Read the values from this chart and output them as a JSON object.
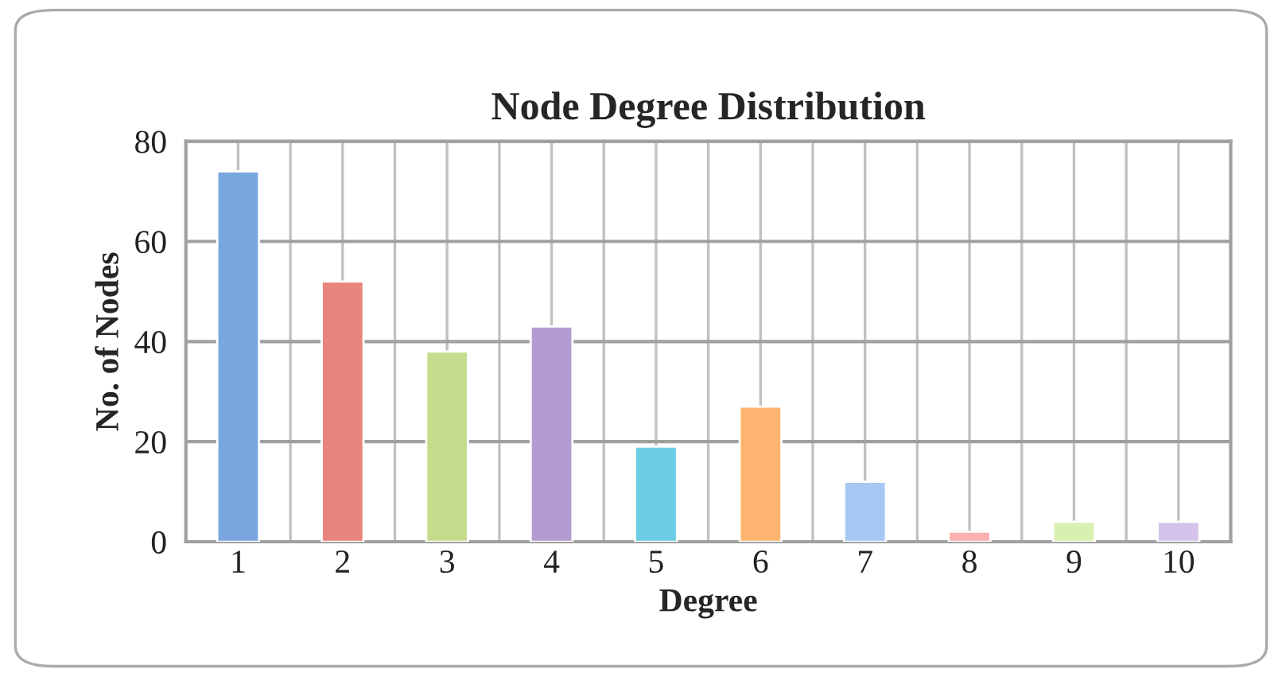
{
  "chart_data": {
    "type": "bar",
    "title": "Node Degree Distribution",
    "xlabel": "Degree",
    "ylabel": "No. of Nodes",
    "categories": [
      "1",
      "2",
      "3",
      "4",
      "5",
      "6",
      "7",
      "8",
      "9",
      "10"
    ],
    "values": [
      74,
      52,
      38,
      43,
      19,
      27,
      12,
      2,
      4,
      4
    ],
    "colors": [
      "#7aa6e0",
      "#e8847c",
      "#c4dc8c",
      "#b29cd0",
      "#6ccce4",
      "#fdb470",
      "#a8c8f4",
      "#f8b0b0",
      "#d8f0b0",
      "#d4c4ec"
    ],
    "ylim": [
      0,
      80
    ],
    "yticks": [
      0,
      20,
      40,
      60,
      80
    ],
    "grid": true
  }
}
